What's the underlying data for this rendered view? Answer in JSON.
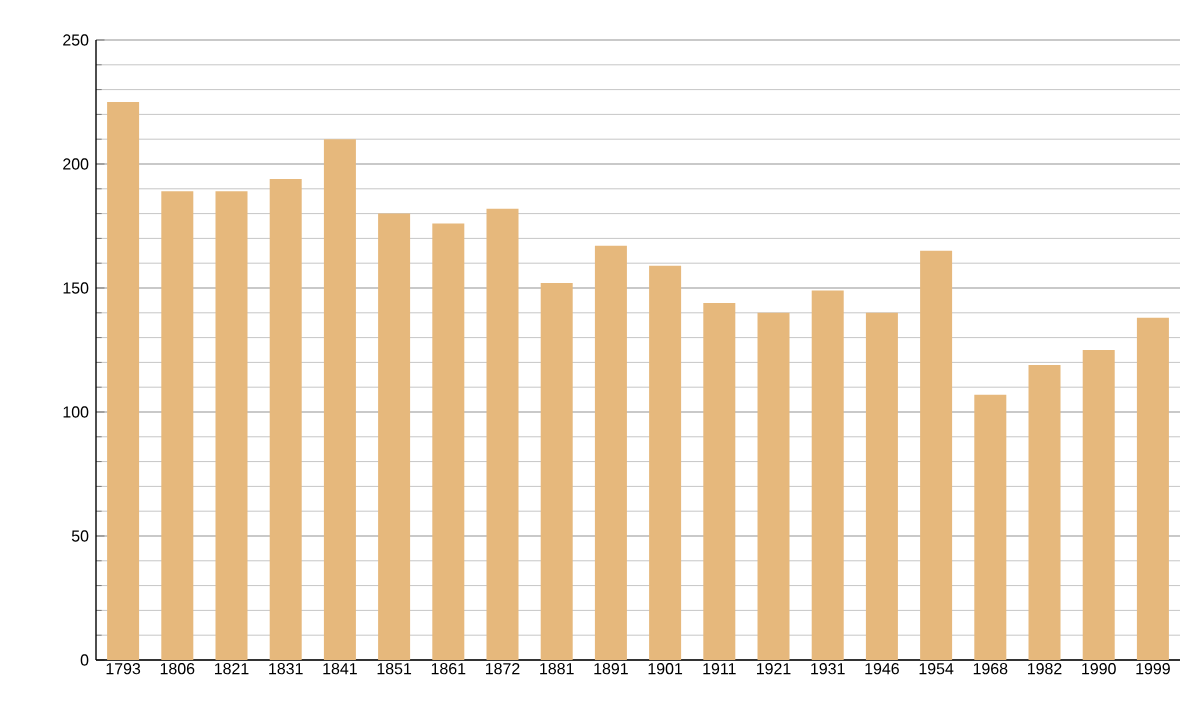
{
  "chart_data": {
    "type": "bar",
    "categories": [
      "1793",
      "1806",
      "1821",
      "1831",
      "1841",
      "1851",
      "1861",
      "1872",
      "1881",
      "1891",
      "1901",
      "1911",
      "1921",
      "1931",
      "1946",
      "1954",
      "1968",
      "1982",
      "1990",
      "1999"
    ],
    "values": [
      225,
      189,
      189,
      194,
      210,
      180,
      176,
      182,
      152,
      167,
      159,
      144,
      140,
      149,
      140,
      165,
      107,
      119,
      125,
      138
    ],
    "color": "#e6b87c",
    "ylim": [
      0,
      250
    ],
    "yticks": [
      0,
      50,
      100,
      150,
      200,
      250
    ],
    "grid": "y"
  }
}
